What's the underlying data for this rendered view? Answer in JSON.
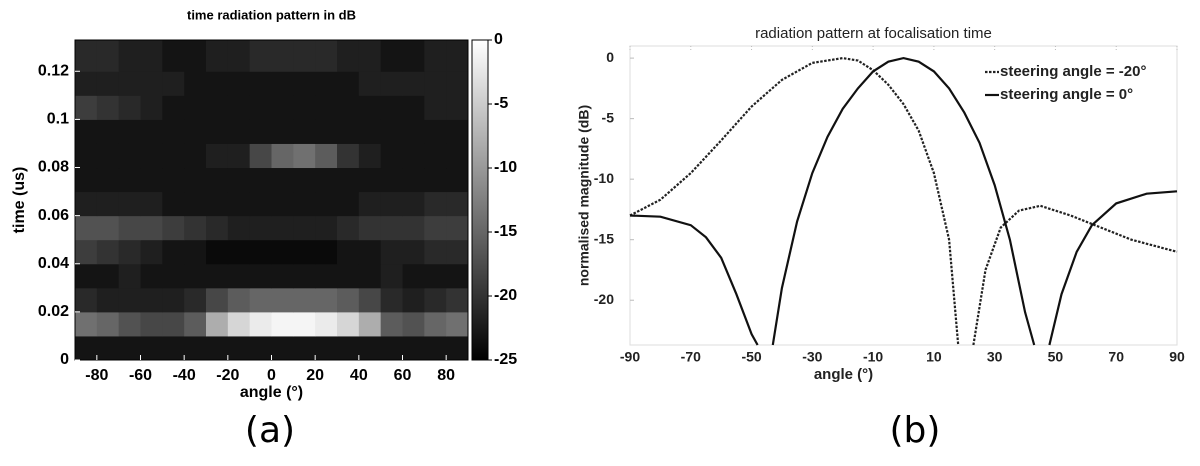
{
  "chart_data": [
    {
      "type": "heatmap",
      "title": "time radiation pattern in dB",
      "xlabel": "angle (°)",
      "ylabel": "time (us)",
      "caption": "(a)",
      "x": [
        -85,
        -75,
        -65,
        -55,
        -45,
        -35,
        -25,
        -15,
        -5,
        5,
        15,
        25,
        35,
        45,
        55,
        65,
        75,
        85
      ],
      "y": [
        0.005,
        0.015,
        0.025,
        0.035,
        0.045,
        0.055,
        0.065,
        0.075,
        0.085,
        0.095,
        0.105,
        0.115,
        0.125
      ],
      "z": [
        [
          -23,
          -23,
          -23,
          -23,
          -23,
          -23,
          -23,
          -23,
          -23,
          -23,
          -23,
          -23,
          -23,
          -23,
          -23,
          -23,
          -23,
          -23
        ],
        [
          -14,
          -15,
          -17,
          -18,
          -18,
          -16,
          -8,
          -4,
          -2,
          -1,
          -1,
          -2,
          -4,
          -8,
          -16,
          -17,
          -15,
          -14
        ],
        [
          -21,
          -22,
          -22,
          -22,
          -22,
          -21,
          -18,
          -16,
          -15,
          -15,
          -15,
          -15,
          -16,
          -18,
          -21,
          -22,
          -21,
          -20
        ],
        [
          -23,
          -23,
          -22,
          -23,
          -23,
          -23,
          -23,
          -23,
          -23,
          -23,
          -23,
          -23,
          -23,
          -23,
          -22,
          -23,
          -23,
          -23
        ],
        [
          -19,
          -20,
          -21,
          -22,
          -23,
          -23,
          -24,
          -24,
          -24,
          -24,
          -24,
          -24,
          -23,
          -23,
          -22,
          -22,
          -21,
          -21
        ],
        [
          -17,
          -17,
          -18,
          -18,
          -19,
          -20,
          -21,
          -22,
          -22,
          -22,
          -22,
          -22,
          -21,
          -20,
          -20,
          -20,
          -19,
          -19
        ],
        [
          -22,
          -22,
          -22,
          -22,
          -23,
          -23,
          -23,
          -23,
          -23,
          -23,
          -23,
          -23,
          -23,
          -22,
          -22,
          -22,
          -21,
          -21
        ],
        [
          -23,
          -23,
          -23,
          -23,
          -23,
          -23,
          -23,
          -23,
          -23,
          -23,
          -23,
          -23,
          -23,
          -23,
          -23,
          -23,
          -23,
          -23
        ],
        [
          -23,
          -23,
          -23,
          -23,
          -23,
          -23,
          -22,
          -22,
          -18,
          -15,
          -14,
          -16,
          -20,
          -22,
          -23,
          -23,
          -23,
          -23
        ],
        [
          -23,
          -23,
          -23,
          -23,
          -23,
          -23,
          -23,
          -23,
          -23,
          -23,
          -23,
          -23,
          -23,
          -23,
          -23,
          -23,
          -23,
          -23
        ],
        [
          -19,
          -20,
          -21,
          -22,
          -23,
          -23,
          -23,
          -23,
          -23,
          -23,
          -23,
          -23,
          -23,
          -23,
          -23,
          -23,
          -22,
          -22
        ],
        [
          -22,
          -22,
          -22,
          -22,
          -22,
          -23,
          -23,
          -23,
          -23,
          -23,
          -23,
          -23,
          -23,
          -22,
          -22,
          -22,
          -22,
          -22
        ],
        [
          -21,
          -21,
          -22,
          -22,
          -23,
          -23,
          -22,
          -22,
          -21,
          -21,
          -21,
          -21,
          -22,
          -22,
          -23,
          -23,
          -22,
          -22
        ]
      ],
      "xlim": [
        -90,
        90
      ],
      "xticks": [
        -80,
        -60,
        -40,
        -20,
        0,
        20,
        40,
        60,
        80
      ],
      "ylim": [
        0,
        0.133
      ],
      "yticks": [
        0,
        0.02,
        0.04,
        0.06,
        0.08,
        0.1,
        0.12
      ],
      "clim": [
        -25,
        0
      ],
      "cticks": [
        0,
        -5,
        -10,
        -15,
        -20,
        -25
      ]
    },
    {
      "type": "line",
      "title": "radiation pattern at focalisation time",
      "xlabel": "angle (°)",
      "ylabel": "normalised magnitude (dB)",
      "caption": "(b)",
      "xlim": [
        -90,
        90
      ],
      "xticks": [
        -90,
        -70,
        -50,
        -30,
        -10,
        10,
        30,
        50,
        70,
        90
      ],
      "ylim": [
        -23.7,
        1
      ],
      "yticks": [
        0,
        -5,
        -10,
        -15,
        -20
      ],
      "legend": "upper right",
      "series": [
        {
          "name": "steering angle = -20°",
          "color": "#222222",
          "style": "dotted",
          "x": [
            -90,
            -80,
            -70,
            -60,
            -50,
            -40,
            -30,
            -20,
            -15,
            -10,
            -5,
            0,
            5,
            10,
            15,
            18,
            null,
            23,
            27,
            32,
            38,
            45,
            55,
            65,
            75,
            90
          ],
          "values": [
            -13,
            -11.7,
            -9.5,
            -6.8,
            -4,
            -1.8,
            -0.4,
            0,
            -0.2,
            -1,
            -2.2,
            -3.8,
            -6,
            -9.5,
            -15,
            -23.7,
            null,
            -23.7,
            -17.5,
            -14,
            -12.6,
            -12.2,
            -13,
            -14,
            -15,
            -16
          ]
        },
        {
          "name": "steering angle = 0°",
          "color": "#111111",
          "style": "solid",
          "x": [
            -90,
            -80,
            -70,
            -65,
            -60,
            -55,
            -50,
            -48,
            null,
            -43,
            -40,
            -35,
            -30,
            -25,
            -20,
            -15,
            -10,
            -5,
            0,
            5,
            10,
            15,
            20,
            25,
            30,
            35,
            40,
            43,
            null,
            48,
            52,
            57,
            62,
            70,
            80,
            90
          ],
          "values": [
            -13,
            -13.1,
            -13.8,
            -14.8,
            -16.5,
            -19.5,
            -22.8,
            -23.7,
            null,
            -23.7,
            -19,
            -13.5,
            -9.5,
            -6.5,
            -4.2,
            -2.5,
            -1.1,
            -0.3,
            0,
            -0.3,
            -1.1,
            -2.5,
            -4.5,
            -7,
            -10.5,
            -15,
            -21,
            -23.7,
            null,
            -23.7,
            -19.5,
            -16,
            -13.8,
            -12,
            -11.2,
            -11
          ]
        }
      ]
    }
  ]
}
